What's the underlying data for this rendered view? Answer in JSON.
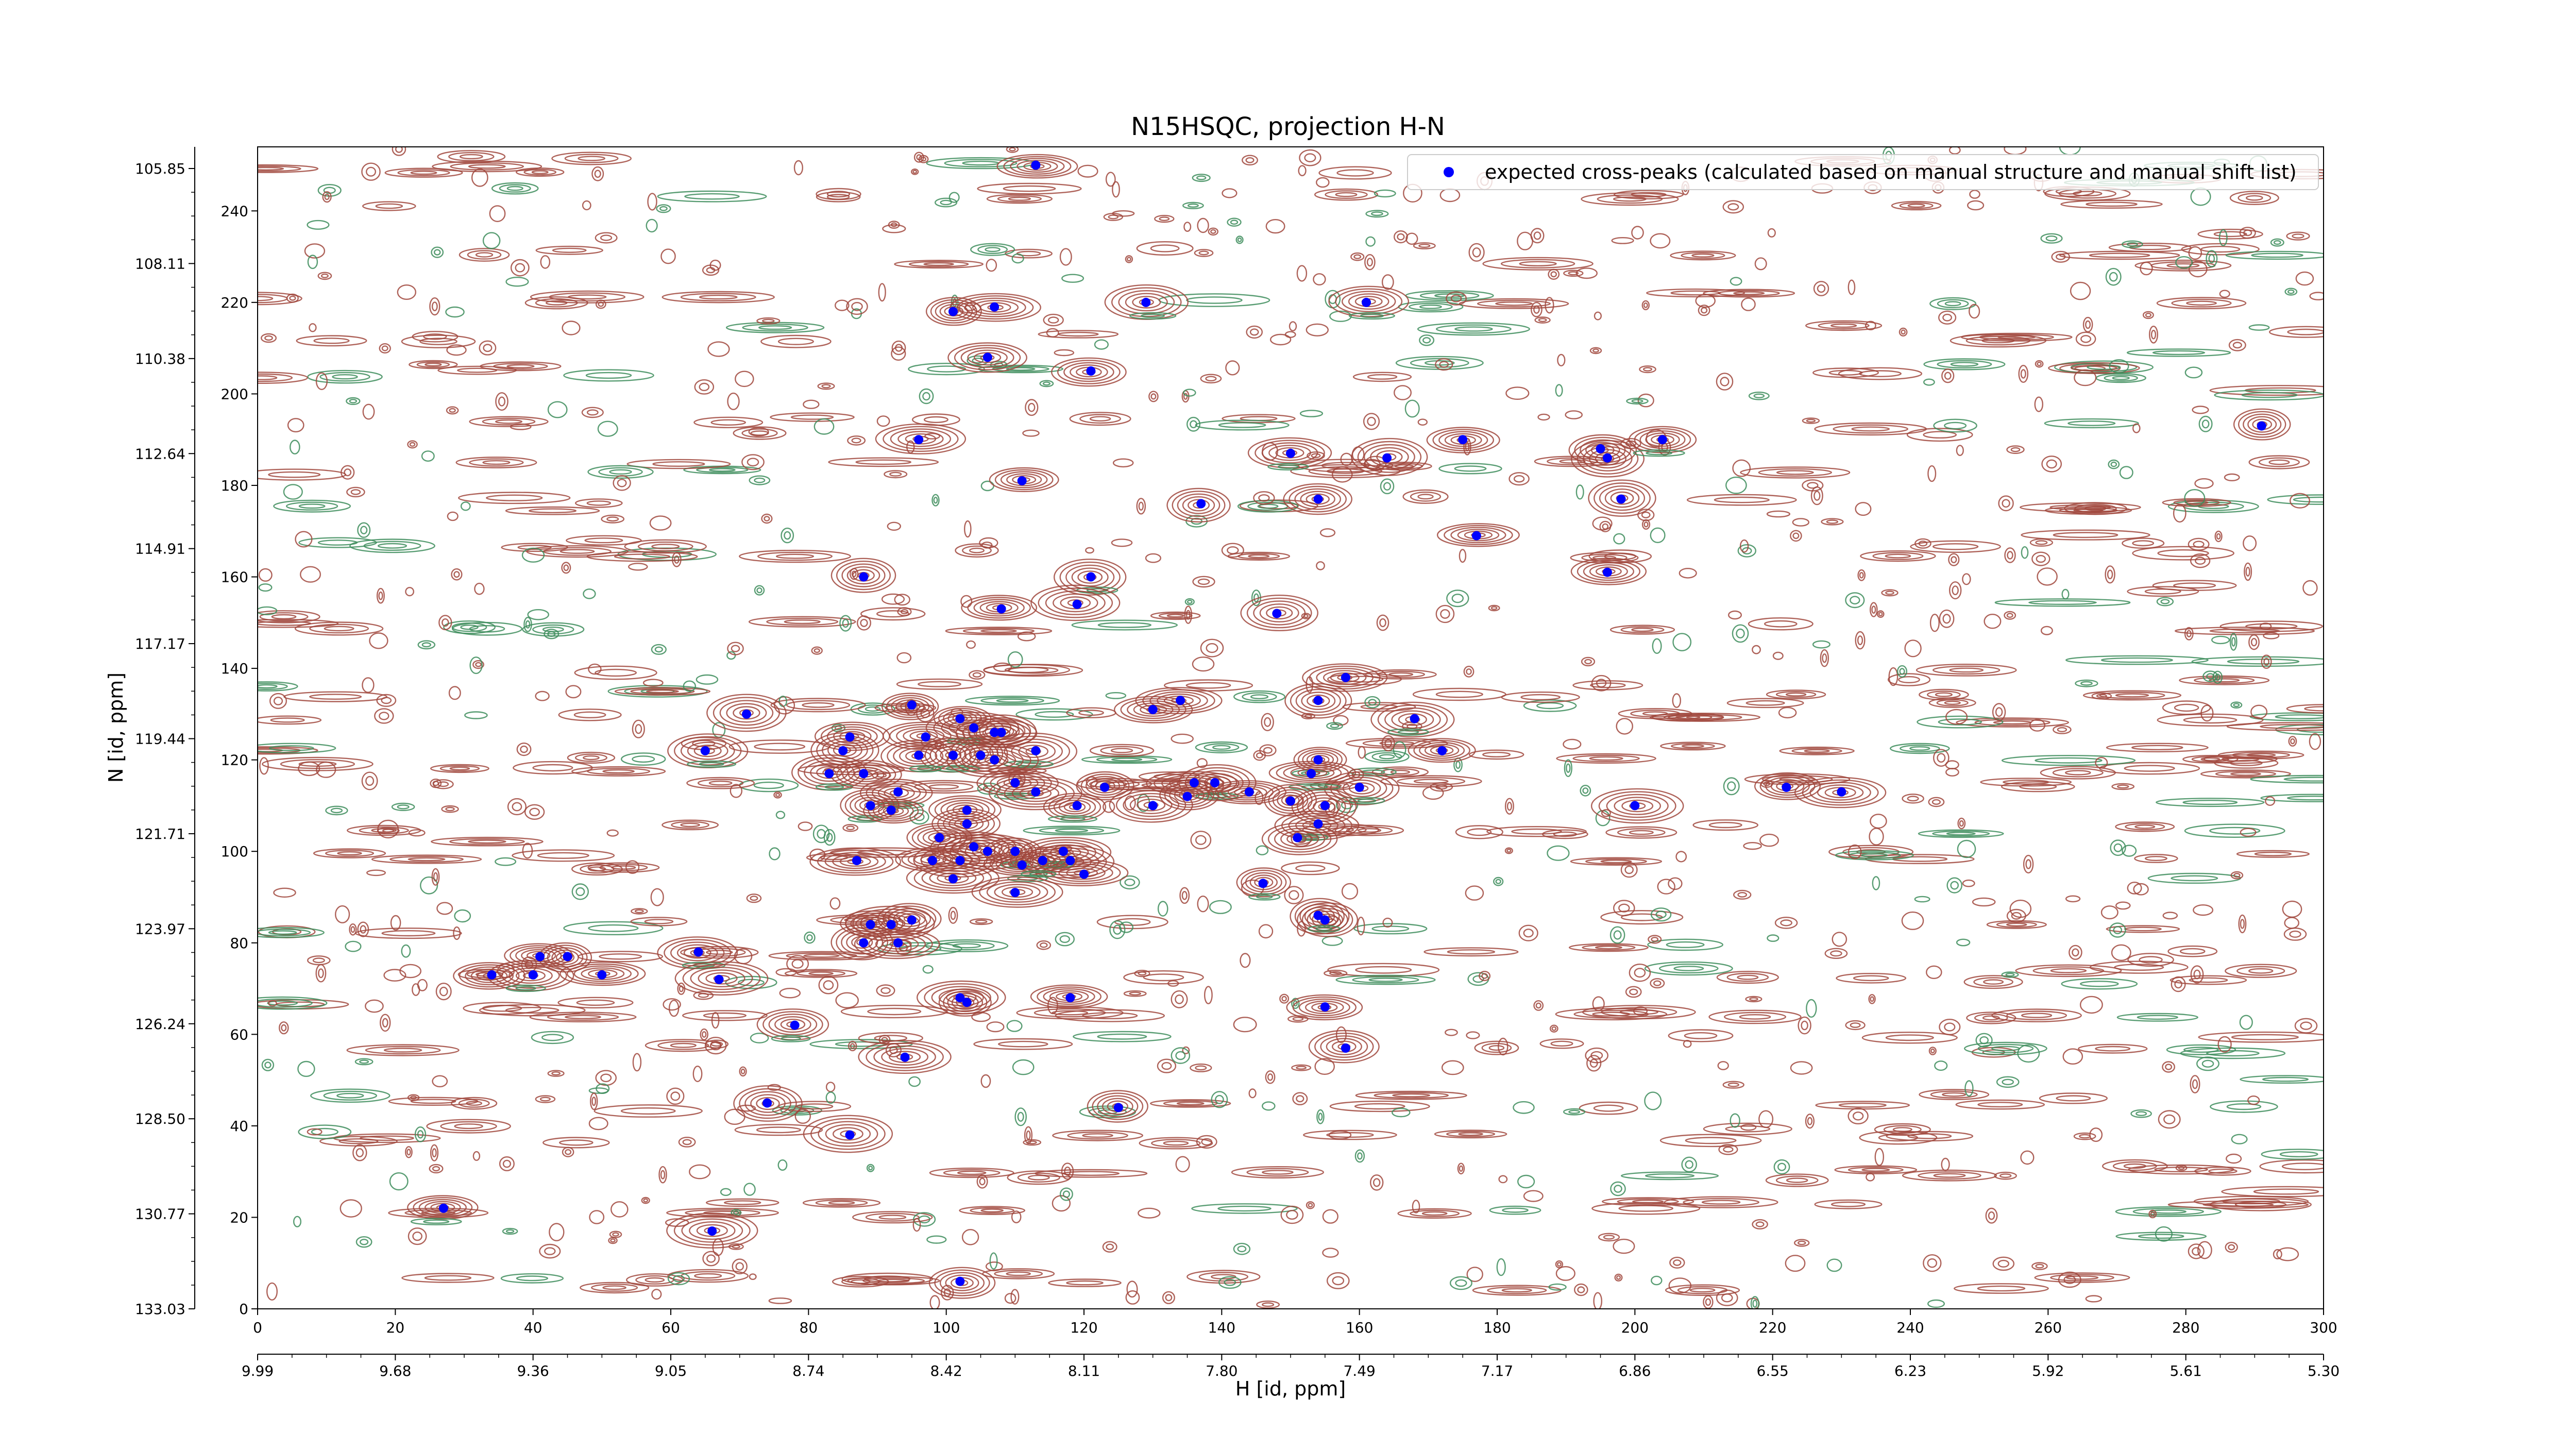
{
  "chart_data": {
    "type": "scatter",
    "title": "N15HSQC, projection H-N",
    "xlabel": "H [id, ppm]",
    "ylabel": "N [id, ppm]",
    "xlim": [
      0,
      300
    ],
    "ylim": [
      0,
      254
    ],
    "x_index_ticks": [
      "0",
      "20",
      "40",
      "60",
      "80",
      "100",
      "120",
      "140",
      "160",
      "180",
      "200",
      "220",
      "240",
      "260",
      "280",
      "300"
    ],
    "x_ppm_ticks": [
      "9.99",
      "9.68",
      "9.36",
      "9.05",
      "8.74",
      "8.42",
      "8.11",
      "7.80",
      "7.49",
      "7.17",
      "6.86",
      "6.55",
      "6.23",
      "5.92",
      "5.61",
      "5.30"
    ],
    "y_index_ticks": [
      "0",
      "20",
      "40",
      "60",
      "80",
      "100",
      "120",
      "140",
      "160",
      "180",
      "200",
      "220",
      "240"
    ],
    "y_ppm_ticks": [
      "133.03",
      "130.77",
      "128.50",
      "126.24",
      "123.97",
      "121.71",
      "119.44",
      "117.17",
      "114.91",
      "112.64",
      "110.38",
      "108.11",
      "105.85"
    ],
    "legend": {
      "label": "expected cross-peaks (calculated based on manual structure and manual shift list)",
      "placement": "top-right"
    },
    "colors": {
      "positive_contour": "#a0463c",
      "negative_contour": "#3c8c5a",
      "marker": "#0000ff"
    },
    "series": [
      {
        "name": "expected cross-peaks (calculated based on manual structure and manual shift list)",
        "points": [
          [
            113,
            250
          ],
          [
            101,
            218
          ],
          [
            107,
            219
          ],
          [
            129,
            220
          ],
          [
            161,
            220
          ],
          [
            106,
            208
          ],
          [
            121,
            205
          ],
          [
            96,
            190
          ],
          [
            111,
            181
          ],
          [
            150,
            187
          ],
          [
            164,
            186
          ],
          [
            175,
            190
          ],
          [
            195,
            188
          ],
          [
            196,
            186
          ],
          [
            204,
            190
          ],
          [
            137,
            176
          ],
          [
            154,
            177
          ],
          [
            198,
            177
          ],
          [
            177,
            169
          ],
          [
            88,
            160
          ],
          [
            121,
            160
          ],
          [
            196,
            161
          ],
          [
            108,
            153
          ],
          [
            119,
            154
          ],
          [
            148,
            152
          ],
          [
            158,
            138
          ],
          [
            95,
            132
          ],
          [
            97,
            125
          ],
          [
            86,
            125
          ],
          [
            71,
            130
          ],
          [
            134,
            133
          ],
          [
            130,
            131
          ],
          [
            154,
            133
          ],
          [
            168,
            129
          ],
          [
            172,
            122
          ],
          [
            65,
            122
          ],
          [
            102,
            129
          ],
          [
            104,
            127
          ],
          [
            107,
            126
          ],
          [
            108,
            126
          ],
          [
            105,
            121
          ],
          [
            101,
            121
          ],
          [
            96,
            121
          ],
          [
            113,
            122
          ],
          [
            85,
            122
          ],
          [
            83,
            117
          ],
          [
            88,
            117
          ],
          [
            107,
            120
          ],
          [
            110,
            115
          ],
          [
            113,
            113
          ],
          [
            123,
            114
          ],
          [
            136,
            115
          ],
          [
            139,
            115
          ],
          [
            135,
            112
          ],
          [
            160,
            114
          ],
          [
            144,
            113
          ],
          [
            154,
            120
          ],
          [
            153,
            117
          ],
          [
            130,
            110
          ],
          [
            119,
            110
          ],
          [
            93,
            113
          ],
          [
            89,
            110
          ],
          [
            92,
            109
          ],
          [
            103,
            109
          ],
          [
            103,
            106
          ],
          [
            155,
            110
          ],
          [
            150,
            111
          ],
          [
            154,
            106
          ],
          [
            151,
            103
          ],
          [
            99,
            103
          ],
          [
            104,
            101
          ],
          [
            106,
            100
          ],
          [
            110,
            100
          ],
          [
            118,
            98
          ],
          [
            111,
            97
          ],
          [
            120,
            95
          ],
          [
            87,
            98
          ],
          [
            98,
            98
          ],
          [
            102,
            98
          ],
          [
            117,
            100
          ],
          [
            114,
            98
          ],
          [
            101,
            94
          ],
          [
            110,
            91
          ],
          [
            146,
            93
          ],
          [
            155,
            85
          ],
          [
            154,
            86
          ],
          [
            89,
            84
          ],
          [
            92,
            84
          ],
          [
            95,
            85
          ],
          [
            88,
            80
          ],
          [
            93,
            80
          ],
          [
            64,
            78
          ],
          [
            41,
            77
          ],
          [
            45,
            77
          ],
          [
            34,
            73
          ],
          [
            40,
            73
          ],
          [
            50,
            73
          ],
          [
            67,
            72
          ],
          [
            102,
            68
          ],
          [
            103,
            67
          ],
          [
            118,
            68
          ],
          [
            155,
            66
          ],
          [
            78,
            62
          ],
          [
            158,
            57
          ],
          [
            94,
            55
          ],
          [
            74,
            45
          ],
          [
            86,
            38
          ],
          [
            125,
            44
          ],
          [
            66,
            17
          ],
          [
            27,
            22
          ],
          [
            291,
            193
          ],
          [
            102,
            6
          ],
          [
            222,
            114
          ],
          [
            200,
            110
          ],
          [
            230,
            113
          ]
        ]
      }
    ]
  }
}
